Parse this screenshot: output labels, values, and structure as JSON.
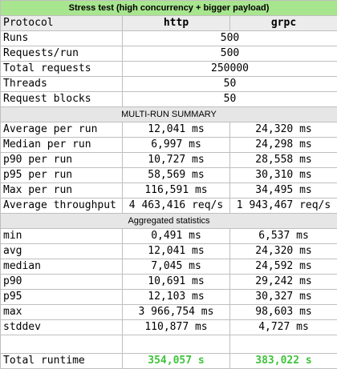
{
  "title": "Stress test (high concurrency + bigger payload)",
  "header": {
    "label": "Protocol",
    "col1": "http",
    "col2": "grpc"
  },
  "config": [
    {
      "label": "Runs",
      "value": "500"
    },
    {
      "label": "Requests/run",
      "value": "500"
    },
    {
      "label": "Total requests",
      "value": "250000"
    },
    {
      "label": "Threads",
      "value": "50"
    },
    {
      "label": "Request blocks",
      "value": "50"
    }
  ],
  "summary": {
    "heading": "MULTI-RUN SUMMARY",
    "rows": [
      {
        "label": "Average per run",
        "http": "12,041 ms",
        "grpc": "24,320 ms"
      },
      {
        "label": "Median per run",
        "http": "6,997 ms",
        "grpc": "24,298 ms"
      },
      {
        "label": "p90 per run",
        "http": "10,727 ms",
        "grpc": "28,558 ms"
      },
      {
        "label": "p95 per run",
        "http": "58,569 ms",
        "grpc": "30,310 ms"
      },
      {
        "label": "Max per run",
        "http": "116,591 ms",
        "grpc": "34,495 ms"
      },
      {
        "label": "Average throughput",
        "http": "4 463,416 req/s",
        "grpc": "1 943,467 req/s"
      }
    ]
  },
  "aggregated": {
    "heading": "Aggregated statistics",
    "rows": [
      {
        "label": "min",
        "http": "0,491 ms",
        "grpc": "6,537 ms"
      },
      {
        "label": "avg",
        "http": "12,041 ms",
        "grpc": "24,320 ms"
      },
      {
        "label": "median",
        "http": "7,045 ms",
        "grpc": "24,592 ms"
      },
      {
        "label": "p90",
        "http": "10,691 ms",
        "grpc": "29,242 ms"
      },
      {
        "label": "p95",
        "http": "12,103 ms",
        "grpc": "30,327 ms"
      },
      {
        "label": "max",
        "http": "3 966,754 ms",
        "grpc": "98,603 ms"
      },
      {
        "label": "stddev",
        "http": "110,877 ms",
        "grpc": "4,727 ms"
      }
    ]
  },
  "total": {
    "label": "Total runtime",
    "http": "354,057 s",
    "grpc": "383,022 s",
    "highlight_color": "#3ec43a"
  }
}
